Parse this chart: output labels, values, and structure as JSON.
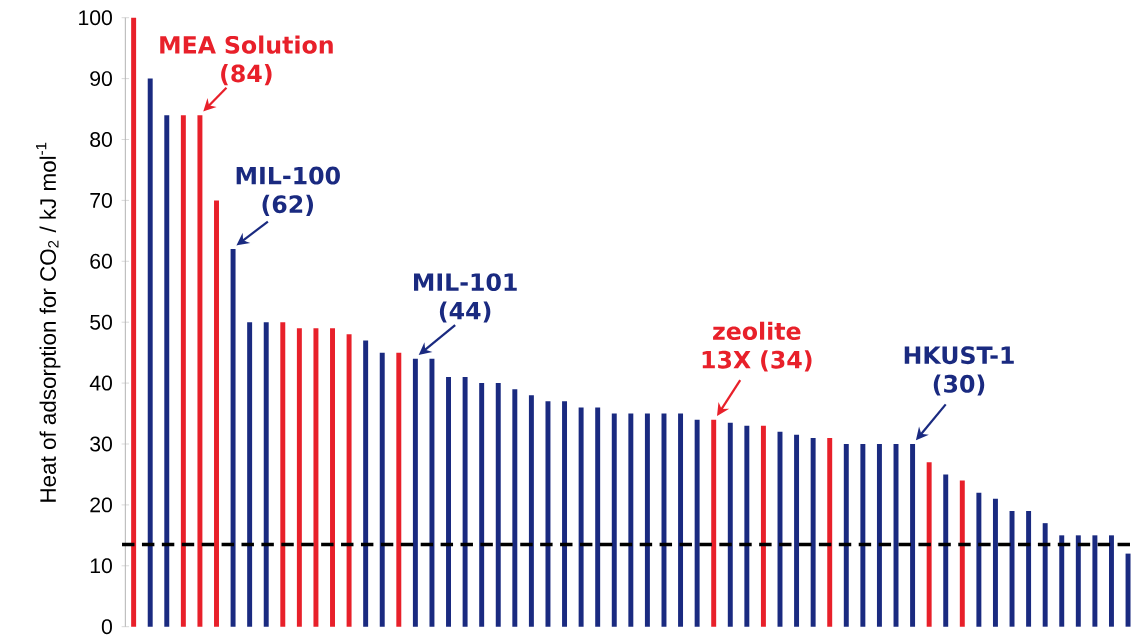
{
  "chart_data": {
    "type": "bar",
    "categories": [
      null,
      null,
      null,
      null,
      null,
      null,
      null,
      null,
      null,
      null,
      null,
      null,
      null,
      null,
      null,
      null,
      null,
      null,
      null,
      null,
      null,
      null,
      null,
      null,
      null,
      null,
      null,
      null,
      null,
      null,
      null,
      null,
      null,
      null,
      null,
      null,
      null,
      null,
      null,
      null,
      null,
      null,
      null,
      null,
      null,
      null,
      null,
      null,
      null,
      null,
      null,
      null,
      null,
      null,
      null,
      null,
      null,
      null,
      null,
      null,
      null
    ],
    "values": [
      100,
      90,
      84,
      84,
      84,
      70,
      62,
      50,
      50,
      50,
      49,
      49,
      49,
      48,
      47,
      45,
      45,
      44,
      44,
      41,
      41,
      40,
      40,
      39,
      38,
      37,
      37,
      36,
      36,
      35,
      35,
      35,
      35,
      35,
      34,
      34,
      33.5,
      33,
      33,
      32,
      31.5,
      31,
      31,
      30,
      30,
      30,
      30,
      30,
      27,
      25,
      24,
      22,
      21,
      19,
      19,
      17,
      15,
      15,
      15,
      15,
      12
    ],
    "colors": [
      "#e8202a",
      "#1a2a80",
      "#1a2a80",
      "#e8202a",
      "#e8202a",
      "#e8202a",
      "#1a2a80",
      "#1a2a80",
      "#1a2a80",
      "#e8202a",
      "#e8202a",
      "#e8202a",
      "#e8202a",
      "#e8202a",
      "#1a2a80",
      "#1a2a80",
      "#e8202a",
      "#1a2a80",
      "#1a2a80",
      "#1a2a80",
      "#1a2a80",
      "#1a2a80",
      "#1a2a80",
      "#1a2a80",
      "#1a2a80",
      "#1a2a80",
      "#1a2a80",
      "#1a2a80",
      "#1a2a80",
      "#1a2a80",
      "#1a2a80",
      "#1a2a80",
      "#1a2a80",
      "#1a2a80",
      "#1a2a80",
      "#e8202a",
      "#1a2a80",
      "#1a2a80",
      "#e8202a",
      "#1a2a80",
      "#1a2a80",
      "#1a2a80",
      "#e8202a",
      "#1a2a80",
      "#1a2a80",
      "#1a2a80",
      "#1a2a80",
      "#1a2a80",
      "#e8202a",
      "#1a2a80",
      "#e8202a",
      "#1a2a80",
      "#1a2a80",
      "#1a2a80",
      "#1a2a80",
      "#1a2a80",
      "#1a2a80",
      "#1a2a80",
      "#1a2a80",
      "#1a2a80",
      "#1a2a80"
    ],
    "ylabel": "Heat of adsorption for CO$_{2}$ / kJ mol$^{-1}$",
    "ylim": [
      0,
      100
    ],
    "yticks": [
      0,
      10,
      20,
      30,
      40,
      50,
      60,
      70,
      80,
      90,
      100
    ],
    "tick_labels": "y",
    "ref_lines": [
      {
        "axis": "y",
        "value": 13.5,
        "color": "#000000",
        "line_style": "dashed"
      }
    ],
    "annotations": [
      "MEA Solution (84)",
      "MIL-100 (62)",
      "MIL-101 (44)",
      "zeolite 13X (34)",
      "HKUST-1 (30)"
    ]
  }
}
